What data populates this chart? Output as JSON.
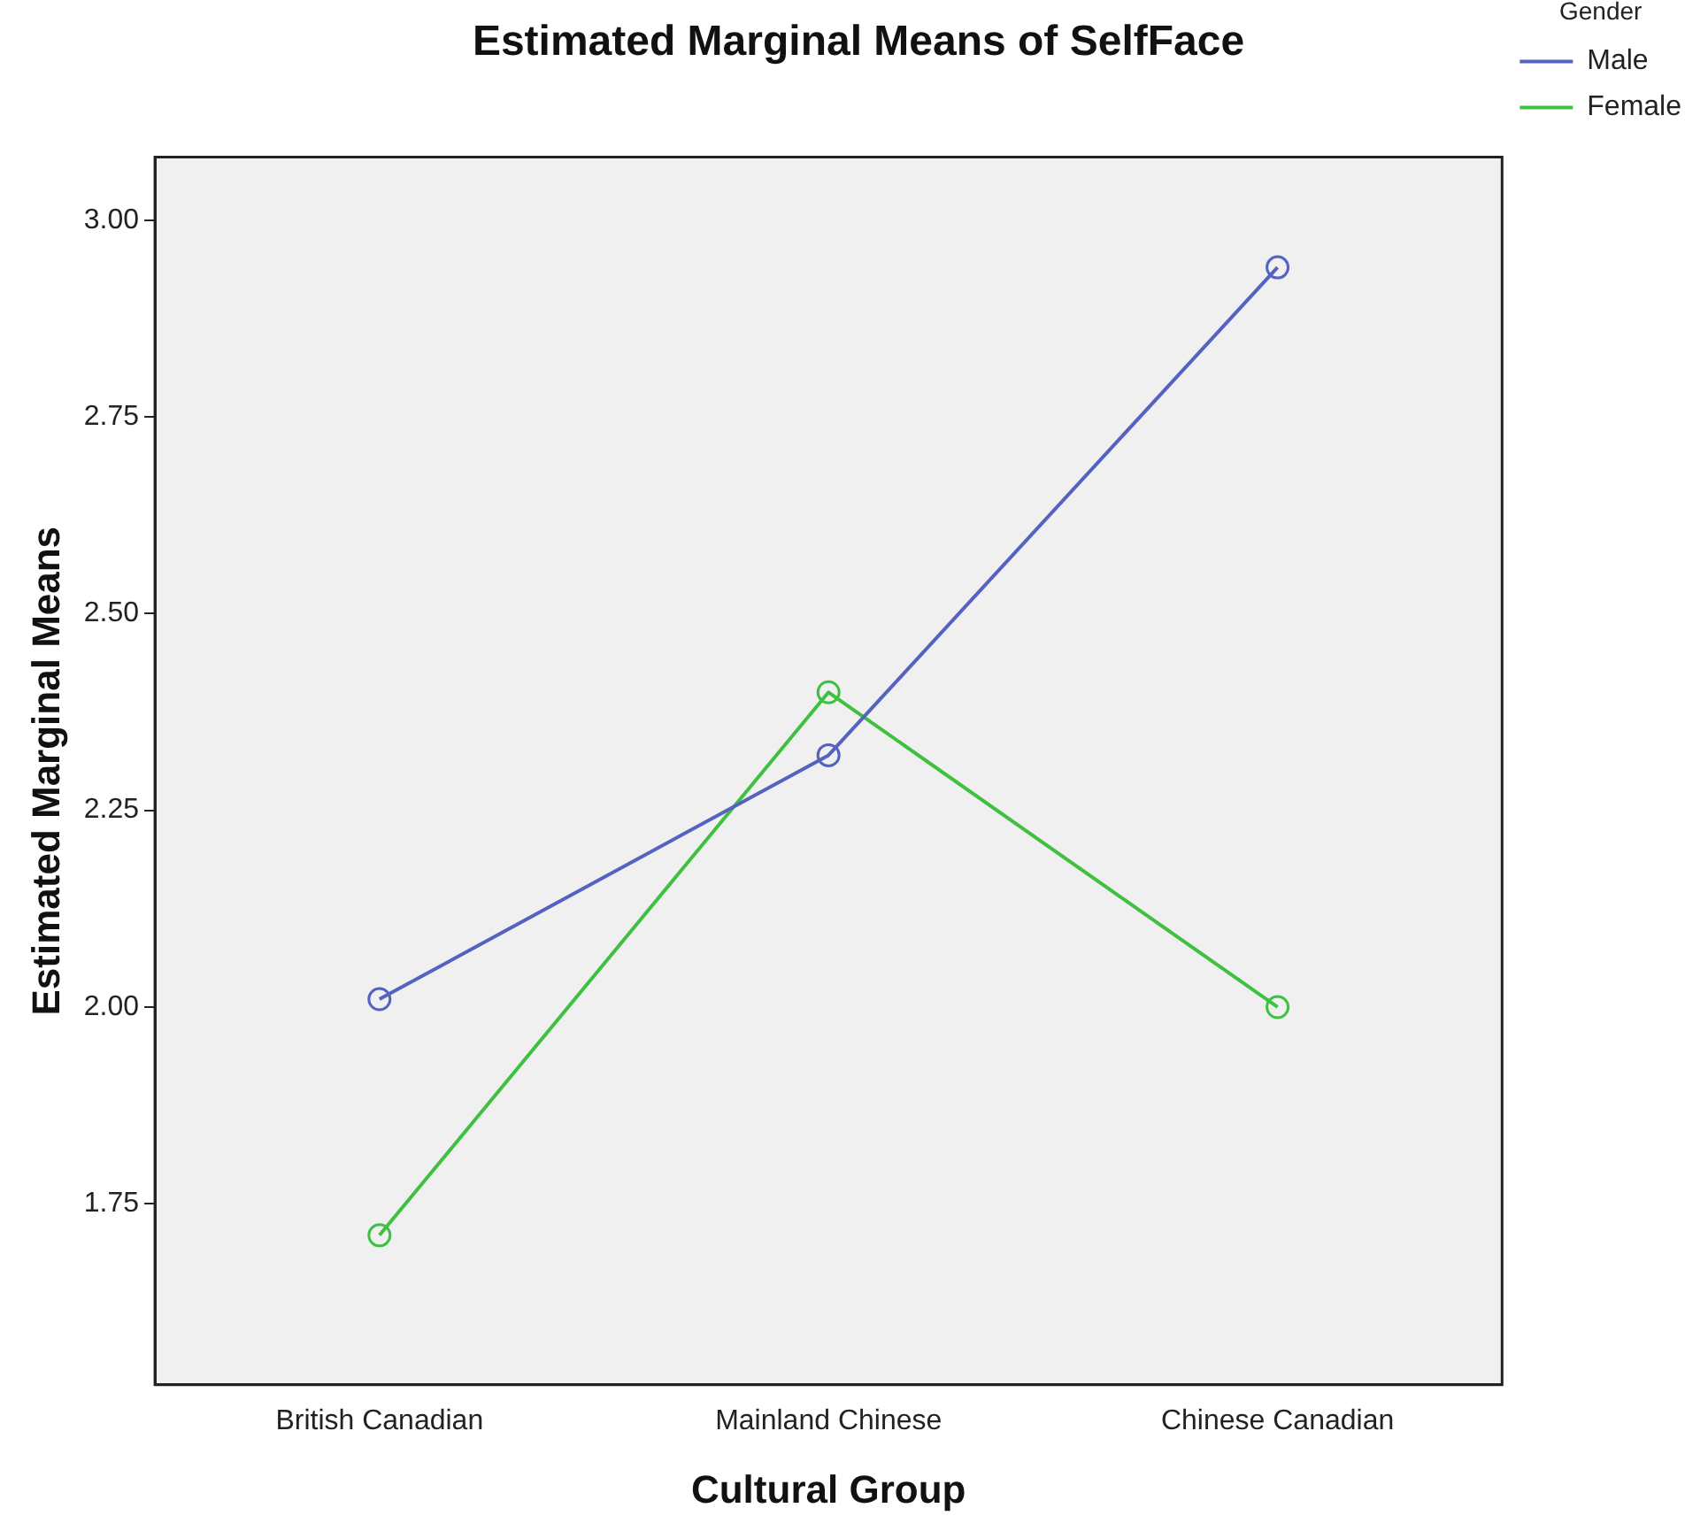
{
  "chart_data": {
    "type": "line",
    "title": "Estimated Marginal Means of SelfFace",
    "xlabel": "Cultural Group",
    "ylabel": "Estimated Marginal Means",
    "legend_title": "Gender",
    "categories": [
      "British Canadian",
      "Mainland Chinese",
      "Chinese Canadian"
    ],
    "series": [
      {
        "name": "Male",
        "color": "#5462c0",
        "values": [
          2.01,
          2.32,
          2.94
        ]
      },
      {
        "name": "Female",
        "color": "#40c040",
        "values": [
          1.71,
          2.4,
          2.0
        ]
      }
    ],
    "ylim": [
      1.52,
      3.08
    ],
    "yticks": [
      {
        "value": 1.75,
        "label": "1.75"
      },
      {
        "value": 2.0,
        "label": "2.00"
      },
      {
        "value": 2.25,
        "label": "2.25"
      },
      {
        "value": 2.5,
        "label": "2.50"
      },
      {
        "value": 2.75,
        "label": "2.75"
      },
      {
        "value": 3.0,
        "label": "3.00"
      }
    ],
    "grid": false,
    "legend": "top right",
    "marker": "circle",
    "line_style": "solid"
  }
}
